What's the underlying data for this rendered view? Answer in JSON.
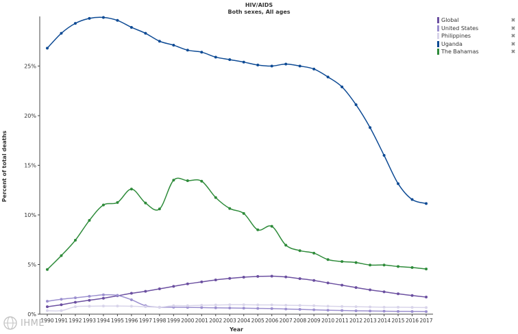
{
  "chart_data": {
    "type": "line",
    "title": "HIV/AIDS",
    "subtitle": "Both sexes, All ages",
    "xlabel": "Year",
    "ylabel": "Percent of total deaths",
    "x": [
      1990,
      1991,
      1992,
      1993,
      1994,
      1995,
      1996,
      1997,
      1998,
      1999,
      2000,
      2001,
      2002,
      2003,
      2004,
      2005,
      2006,
      2007,
      2008,
      2009,
      2010,
      2011,
      2012,
      2013,
      2014,
      2015,
      2016,
      2017
    ],
    "ylim": [
      0,
      30
    ],
    "y_ticks": [
      0,
      5,
      10,
      15,
      20,
      25
    ],
    "y_tick_labels": [
      "0%",
      "5%",
      "10%",
      "15%",
      "20%",
      "25%"
    ],
    "grid": false,
    "legend_position": "top-right",
    "series": [
      {
        "name": "Global",
        "color": "#6b4fa0",
        "values": [
          0.75,
          0.95,
          1.2,
          1.4,
          1.6,
          1.85,
          2.1,
          2.3,
          2.55,
          2.8,
          3.05,
          3.25,
          3.45,
          3.6,
          3.72,
          3.8,
          3.83,
          3.75,
          3.58,
          3.4,
          3.15,
          2.92,
          2.68,
          2.45,
          2.25,
          2.05,
          1.88,
          1.72
        ]
      },
      {
        "name": "United States",
        "color": "#9b8fcf",
        "values": [
          1.3,
          1.5,
          1.65,
          1.8,
          1.95,
          1.9,
          1.45,
          0.85,
          0.7,
          0.7,
          0.68,
          0.66,
          0.64,
          0.62,
          0.6,
          0.58,
          0.56,
          0.52,
          0.48,
          0.44,
          0.4,
          0.37,
          0.34,
          0.32,
          0.3,
          0.28,
          0.27,
          0.26
        ]
      },
      {
        "name": "Philippines",
        "color": "#d8d4ea",
        "values": [
          0.35,
          0.35,
          0.75,
          0.8,
          0.82,
          0.82,
          0.8,
          0.75,
          0.7,
          0.85,
          0.85,
          0.9,
          0.92,
          0.95,
          0.95,
          0.93,
          0.93,
          0.9,
          0.88,
          0.85,
          0.8,
          0.78,
          0.75,
          0.72,
          0.7,
          0.7,
          0.68,
          0.66
        ]
      },
      {
        "name": "Uganda",
        "color": "#0d4a94",
        "values": [
          26.8,
          28.3,
          29.3,
          29.8,
          29.9,
          29.6,
          28.9,
          28.3,
          27.5,
          27.1,
          26.6,
          26.4,
          25.9,
          25.65,
          25.4,
          25.1,
          25.0,
          25.2,
          25.0,
          24.7,
          23.9,
          22.9,
          21.1,
          18.8,
          16.0,
          13.15,
          11.55,
          11.15
        ]
      },
      {
        "name": "The Bahamas",
        "color": "#2e8b3a",
        "values": [
          4.5,
          5.9,
          7.45,
          9.45,
          11.0,
          11.25,
          12.6,
          11.2,
          10.6,
          13.5,
          13.45,
          13.4,
          11.75,
          10.65,
          10.15,
          8.5,
          8.85,
          6.95,
          6.4,
          6.15,
          5.5,
          5.3,
          5.2,
          4.95,
          4.95,
          4.8,
          4.7,
          4.55
        ]
      }
    ]
  },
  "legend": {
    "remove_glyph": "✖",
    "items": [
      {
        "label": "Global",
        "color": "#6b4fa0"
      },
      {
        "label": "United States",
        "color": "#9b8fcf"
      },
      {
        "label": "Philippines",
        "color": "#d8d4ea"
      },
      {
        "label": "Uganda",
        "color": "#0d4a94"
      },
      {
        "label": "The Bahamas",
        "color": "#2e8b3a"
      }
    ]
  },
  "branding": {
    "logo_text": "IHME"
  }
}
